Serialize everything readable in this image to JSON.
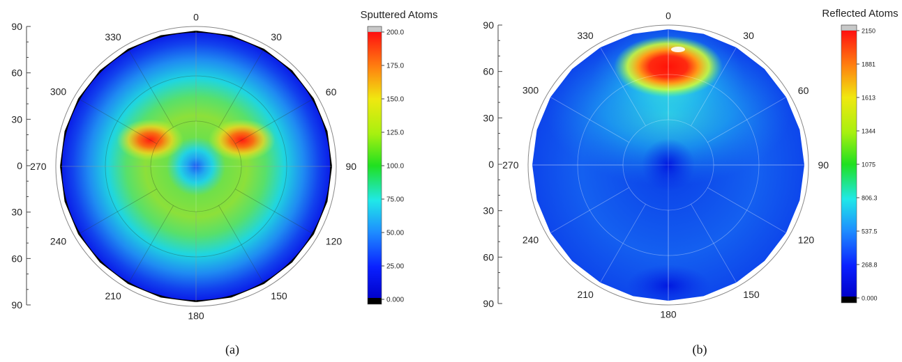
{
  "chart_data": [
    {
      "type": "heatmap",
      "panel_caption": "(a)",
      "colorbar_title": "Sputtered Atoms",
      "colorbar_ticks": [
        "200.0",
        "175.0",
        "150.0",
        "125.0",
        "100.0",
        "75.00",
        "50.00",
        "25.00",
        "0.000"
      ],
      "colorbar_range": [
        0,
        200
      ],
      "radial_axis_ticks": [
        "90",
        "60",
        "30",
        "0",
        "30",
        "60",
        "90"
      ],
      "angular_ticks": [
        "0",
        "30",
        "60",
        "90",
        "120",
        "150",
        "180",
        "210",
        "240",
        "270",
        "300",
        "330"
      ],
      "radial_range": [
        0,
        90
      ],
      "grid": true,
      "hotspots": [
        {
          "azimuth": 300,
          "polar": 35,
          "value": 185
        },
        {
          "azimuth": 60,
          "polar": 35,
          "value": 185
        },
        {
          "azimuth": 0,
          "polar": 0,
          "value": 30
        }
      ]
    },
    {
      "type": "heatmap",
      "panel_caption": "(b)",
      "colorbar_title": "Reflected Atoms",
      "colorbar_ticks": [
        "2150",
        "1881",
        "1613",
        "1344",
        "1075",
        "806.3",
        "537.5",
        "268.8",
        "0.000"
      ],
      "colorbar_range": [
        0,
        2150
      ],
      "radial_axis_ticks": [
        "90",
        "60",
        "30",
        "0",
        "30",
        "60",
        "90"
      ],
      "angular_ticks": [
        "0",
        "30",
        "60",
        "90",
        "120",
        "150",
        "180",
        "210",
        "240",
        "270",
        "300",
        "330"
      ],
      "radial_range": [
        0,
        90
      ],
      "grid": true,
      "hotspots": [
        {
          "azimuth": 0,
          "polar": 68,
          "value": 2100
        },
        {
          "azimuth": 180,
          "polar": 80,
          "value": 150
        }
      ]
    }
  ]
}
